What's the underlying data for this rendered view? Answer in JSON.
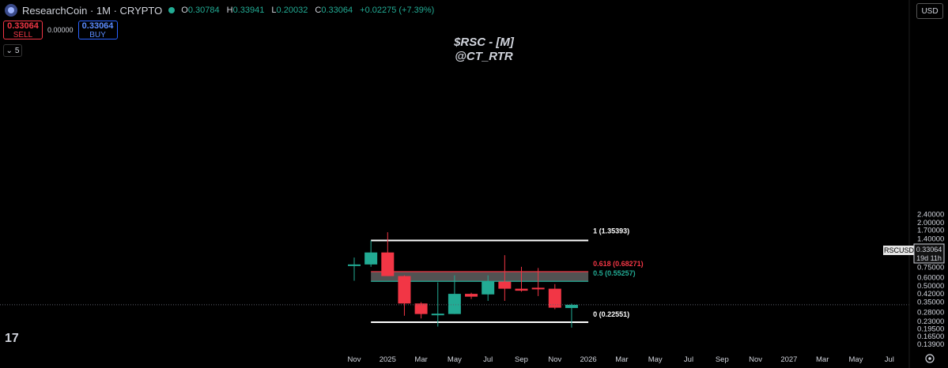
{
  "header": {
    "symbol": "ResearchCoin · 1M · CRYPTO",
    "open_label": "O",
    "open": "0.30784",
    "high_label": "H",
    "high": "0.33941",
    "low_label": "L",
    "low": "0.20032",
    "close_label": "C",
    "close": "0.33064",
    "change": "+0.02275 (+7.39%)"
  },
  "trade": {
    "sell_price": "0.33064",
    "sell_label": "SELL",
    "spread": "0.00000",
    "buy_price": "0.33064",
    "buy_label": "BUY"
  },
  "indicator_count": "5",
  "currency": "USD",
  "watermark": {
    "line1": "$RSC - [M]",
    "line2": "@CT_RTR"
  },
  "price_tag": {
    "symbol": "RSCUSD",
    "price": "0.33064",
    "countdown": "19d 11h"
  },
  "colors": {
    "up": "#22ab94",
    "down": "#f23645",
    "zone": "#6e6e6e",
    "fib_618": "#f23645",
    "fib_05": "#22ab94",
    "fib_white": "#ffffff"
  },
  "chart_data": {
    "type": "candlestick",
    "y_scale": "log",
    "ylim": [
      0.13,
      2.55
    ],
    "y_ticks": [
      2.4,
      2.0,
      1.7,
      1.4,
      1.1,
      0.9,
      0.75,
      0.6,
      0.5,
      0.42,
      0.35,
      0.28,
      0.23,
      0.195,
      0.165,
      0.139
    ],
    "y_tick_labels": [
      "2.40000",
      "2.00000",
      "1.70000",
      "1.40000",
      "1.10000",
      "0.90000",
      "0.75000",
      "0.60000",
      "0.50000",
      "0.42000",
      "0.35000",
      "0.28000",
      "0.23000",
      "0.19500",
      "0.16500",
      "0.13900"
    ],
    "x_ticks": [
      "Nov",
      "2025",
      "Mar",
      "May",
      "Jul",
      "Sep",
      "Nov",
      "2026",
      "Mar",
      "May",
      "Jul",
      "Sep",
      "Nov",
      "2027",
      "Mar",
      "May",
      "Jul"
    ],
    "candles": [
      {
        "month": "2024-10",
        "o": 0.8,
        "h": 0.93,
        "l": 0.56,
        "c": 0.8
      },
      {
        "month": "2024-11",
        "o": 0.8,
        "h": 1.35,
        "l": 0.76,
        "c": 1.04
      },
      {
        "month": "2024-12",
        "o": 1.04,
        "h": 1.62,
        "l": 0.62,
        "c": 0.62
      },
      {
        "month": "2025-01",
        "o": 0.62,
        "h": 0.63,
        "l": 0.26,
        "c": 0.34
      },
      {
        "month": "2025-02",
        "o": 0.34,
        "h": 0.35,
        "l": 0.245,
        "c": 0.27
      },
      {
        "month": "2025-03",
        "o": 0.27,
        "h": 0.54,
        "l": 0.205,
        "c": 0.272
      },
      {
        "month": "2025-04",
        "o": 0.27,
        "h": 0.63,
        "l": 0.27,
        "c": 0.42
      },
      {
        "month": "2025-05",
        "o": 0.42,
        "h": 0.43,
        "l": 0.375,
        "c": 0.395
      },
      {
        "month": "2025-06",
        "o": 0.415,
        "h": 0.63,
        "l": 0.36,
        "c": 0.55
      },
      {
        "month": "2025-07",
        "o": 0.55,
        "h": 0.98,
        "l": 0.36,
        "c": 0.47
      },
      {
        "month": "2025-08",
        "o": 0.47,
        "h": 0.76,
        "l": 0.44,
        "c": 0.45
      },
      {
        "month": "2025-09",
        "o": 0.48,
        "h": 0.74,
        "l": 0.4,
        "c": 0.47
      },
      {
        "month": "2025-10",
        "o": 0.47,
        "h": 0.52,
        "l": 0.3,
        "c": 0.31
      },
      {
        "month": "2025-11",
        "o": 0.30784,
        "h": 0.33941,
        "l": 0.20032,
        "c": 0.33064
      }
    ],
    "zone": {
      "top": 0.68271,
      "bottom": 0.55257
    },
    "levels": [
      {
        "label": "1 (1.35393)",
        "value": 1.35393,
        "color": "#ffffff"
      },
      {
        "label": "0.618 (0.68271)",
        "value": 0.68271,
        "color": "#f23645"
      },
      {
        "label": "0.5 (0.55257)",
        "value": 0.55257,
        "color": "#22ab94"
      },
      {
        "label": "0 (0.22551)",
        "value": 0.22551,
        "color": "#ffffff"
      }
    ],
    "last_price": 0.33064
  }
}
